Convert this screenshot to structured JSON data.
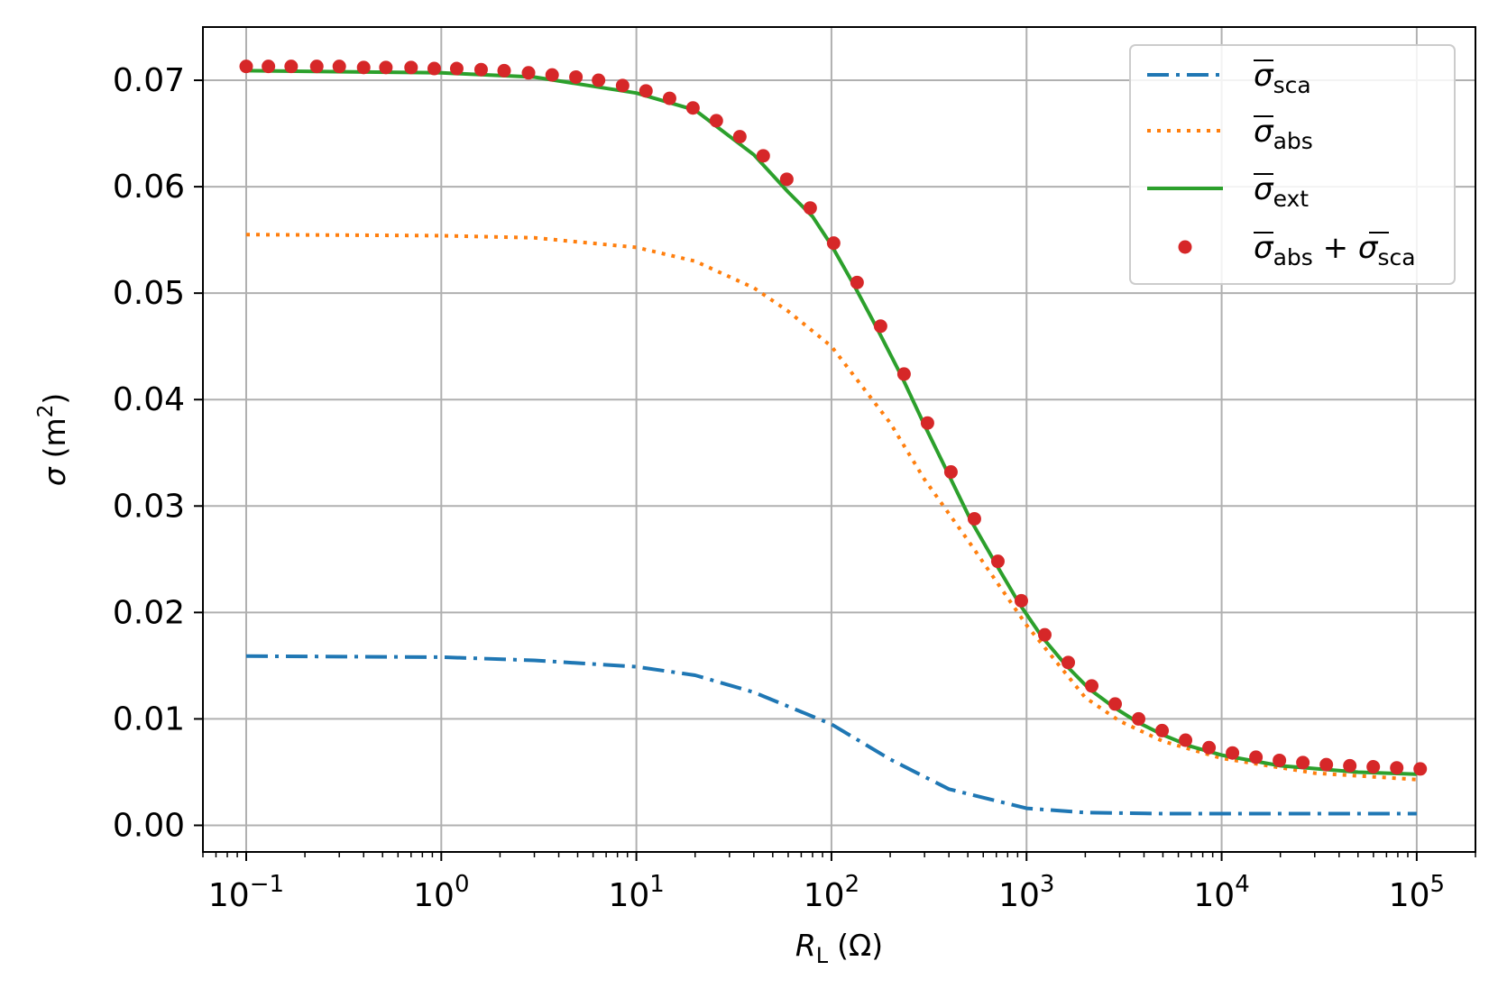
{
  "chart_data": {
    "type": "line",
    "xscale": "log",
    "xlim": [
      0.06,
      200000
    ],
    "ylim": [
      -0.0025,
      0.075
    ],
    "grid": true,
    "legend_position": "top-right",
    "xlabel": {
      "symbol": "R",
      "subscript": "L",
      "unit": "(Ω)"
    },
    "ylabel": {
      "symbol": "σ",
      "unit_open": "(m",
      "unit_sup": "2",
      "unit_close": ")"
    },
    "xticks": [
      {
        "value": 0.1,
        "base": "10",
        "exp": "−1"
      },
      {
        "value": 1,
        "base": "10",
        "exp": "0"
      },
      {
        "value": 10,
        "base": "10",
        "exp": "1"
      },
      {
        "value": 100,
        "base": "10",
        "exp": "2"
      },
      {
        "value": 1000,
        "base": "10",
        "exp": "3"
      },
      {
        "value": 10000,
        "base": "10",
        "exp": "4"
      },
      {
        "value": 100000,
        "base": "10",
        "exp": "5"
      }
    ],
    "yticks": [
      {
        "value": 0.0,
        "label": "0.00"
      },
      {
        "value": 0.01,
        "label": "0.01"
      },
      {
        "value": 0.02,
        "label": "0.02"
      },
      {
        "value": 0.03,
        "label": "0.03"
      },
      {
        "value": 0.04,
        "label": "0.04"
      },
      {
        "value": 0.05,
        "label": "0.05"
      },
      {
        "value": 0.06,
        "label": "0.06"
      },
      {
        "value": 0.07,
        "label": "0.07"
      }
    ],
    "series": [
      {
        "name": "σ̄sca",
        "sym": "σ",
        "sub": "sca",
        "color": "#1f77b4",
        "style": "dashdot",
        "x": [
          0.1,
          1,
          3,
          10,
          20,
          40,
          100,
          200,
          400,
          1000,
          2000,
          5000,
          10000,
          100000
        ],
        "y": [
          0.0159,
          0.0158,
          0.0155,
          0.0149,
          0.0141,
          0.0125,
          0.0095,
          0.0062,
          0.0034,
          0.0016,
          0.0012,
          0.0011,
          0.0011,
          0.0011
        ]
      },
      {
        "name": "σ̄abs",
        "sym": "σ",
        "sub": "abs",
        "color": "#ff7f0e",
        "style": "dotted",
        "x": [
          0.1,
          1,
          3,
          10,
          20,
          40,
          60,
          100,
          200,
          300,
          500,
          1000,
          2000,
          3000,
          5000,
          10000,
          30000,
          100000
        ],
        "y": [
          0.0555,
          0.0554,
          0.0552,
          0.0543,
          0.053,
          0.0505,
          0.0483,
          0.045,
          0.0378,
          0.0325,
          0.0268,
          0.0188,
          0.012,
          0.0098,
          0.0079,
          0.0063,
          0.0049,
          0.0043
        ]
      },
      {
        "name": "σ̄ext",
        "sym": "σ",
        "sub": "ext",
        "color": "#2ca02c",
        "style": "solid",
        "x": [
          0.1,
          1,
          3,
          10,
          20,
          40,
          60,
          80,
          100,
          130,
          170,
          230,
          300,
          400,
          520,
          700,
          920,
          1200,
          1600,
          2100,
          2800,
          3700,
          5000,
          7000,
          10000,
          20000,
          50000,
          100000
        ],
        "y": [
          0.0709,
          0.0707,
          0.0703,
          0.0688,
          0.0672,
          0.063,
          0.0595,
          0.0572,
          0.0545,
          0.0508,
          0.0468,
          0.0421,
          0.0376,
          0.0329,
          0.0286,
          0.0245,
          0.0208,
          0.0177,
          0.015,
          0.0128,
          0.0111,
          0.0097,
          0.0085,
          0.0074,
          0.0066,
          0.0056,
          0.005,
          0.0048
        ]
      },
      {
        "name": "σ̄abs + σ̄sca",
        "sym": "σ",
        "sub": "abs",
        "sym2": "σ",
        "sub2": "sca",
        "color": "#d62728",
        "style": "markers",
        "x": [
          0.1,
          0.13,
          0.17,
          0.23,
          0.3,
          0.4,
          0.52,
          0.7,
          0.92,
          1.2,
          1.6,
          2.1,
          2.8,
          3.7,
          4.9,
          6.4,
          8.5,
          11.2,
          14.8,
          19.5,
          25.7,
          33.9,
          44.7,
          59,
          77.8,
          102.6,
          135.3,
          178.5,
          235.5,
          310.6,
          409.7,
          540.4,
          712.8,
          940.2,
          1240,
          1636,
          2158,
          2846,
          3754,
          4952,
          6532,
          8617,
          11366,
          14993,
          19777,
          26087,
          34411,
          45392,
          59876,
          78980,
          104179
        ],
        "y": [
          0.0713,
          0.0713,
          0.0713,
          0.0713,
          0.0713,
          0.0712,
          0.0712,
          0.0712,
          0.0711,
          0.0711,
          0.071,
          0.0709,
          0.0707,
          0.0705,
          0.0703,
          0.07,
          0.0695,
          0.069,
          0.0683,
          0.0674,
          0.0662,
          0.0647,
          0.0629,
          0.0607,
          0.058,
          0.0547,
          0.051,
          0.0469,
          0.0424,
          0.0378,
          0.0332,
          0.0288,
          0.0248,
          0.0211,
          0.0179,
          0.0153,
          0.0131,
          0.0114,
          0.01,
          0.0089,
          0.008,
          0.0073,
          0.0068,
          0.0064,
          0.0061,
          0.0059,
          0.0057,
          0.0056,
          0.0055,
          0.0054,
          0.0053
        ]
      }
    ]
  }
}
